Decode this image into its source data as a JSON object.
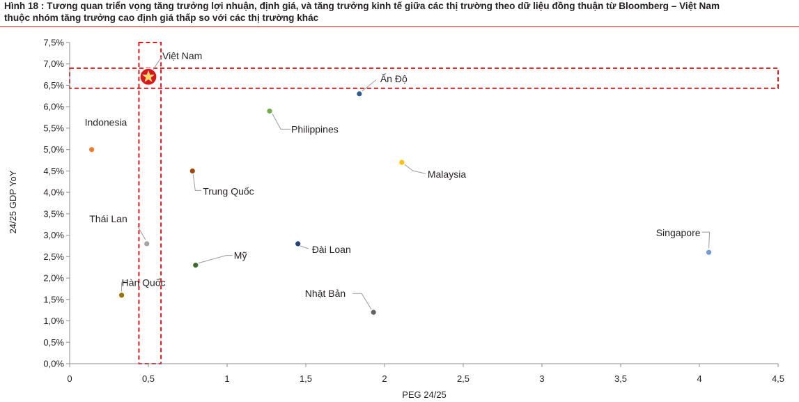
{
  "figure": {
    "title_line1": "Hình 18 : Tương quan triển vọng tăng trưởng lợi nhuận, định giá, và tăng trưởng kinh tế giữa các thị trường theo dữ liệu đồng thuận từ Bloomberg – Việt Nam",
    "title_line2": "thuộc nhóm tăng trưởng cao định giá thấp so với các thị trường khác"
  },
  "chart_data": {
    "type": "scatter",
    "xlabel": "PEG 24/25",
    "ylabel": "24/25 GDP YoY",
    "xlim": [
      0,
      4.5
    ],
    "ylim": [
      0,
      7.5
    ],
    "x_ticks": [
      "0",
      "0,5",
      "1",
      "1,5",
      "2",
      "2,5",
      "3",
      "3,5",
      "4",
      "4,5"
    ],
    "y_ticks": [
      "0,0%",
      "0,5%",
      "1,0%",
      "1,5%",
      "2,0%",
      "2,5%",
      "3,0%",
      "3,5%",
      "4,0%",
      "4,5%",
      "5,0%",
      "5,5%",
      "6,0%",
      "6,5%",
      "7,0%",
      "7,5%"
    ],
    "grid": false,
    "legend": "none",
    "points": [
      {
        "label": "Việt Nam",
        "x": 0.5,
        "y": 6.7,
        "color": "#d7191c",
        "marker": "star"
      },
      {
        "label": "Ấn Độ",
        "x": 1.84,
        "y": 6.3,
        "color": "#2e5d8e"
      },
      {
        "label": "Philippines",
        "x": 1.27,
        "y": 5.9,
        "color": "#70ad47"
      },
      {
        "label": "Indonesia",
        "x": 0.14,
        "y": 5.0,
        "color": "#ed7d31"
      },
      {
        "label": "Malaysia",
        "x": 2.11,
        "y": 4.7,
        "color": "#ffc000"
      },
      {
        "label": "Trung Quốc",
        "x": 0.78,
        "y": 4.5,
        "color": "#9e480e"
      },
      {
        "label": "Thái Lan",
        "x": 0.49,
        "y": 2.8,
        "color": "#a5a5a5"
      },
      {
        "label": "Đài Loan",
        "x": 1.45,
        "y": 2.8,
        "color": "#264478"
      },
      {
        "label": "Singapore",
        "x": 4.06,
        "y": 2.6,
        "color": "#6f9bd1"
      },
      {
        "label": "Mỹ",
        "x": 0.8,
        "y": 2.3,
        "color": "#43682b"
      },
      {
        "label": "Hàn Quốc",
        "x": 0.33,
        "y": 1.6,
        "color": "#997300"
      },
      {
        "label": "Nhật Bản",
        "x": 1.93,
        "y": 1.2,
        "color": "#636363"
      }
    ],
    "highlight_regions": [
      {
        "x_range": [
          0.44,
          0.58
        ],
        "y_range": [
          0,
          7.5
        ],
        "color": "#d7191c"
      },
      {
        "x_range": [
          0,
          4.5
        ],
        "y_range": [
          6.43,
          6.9
        ],
        "color": "#d7191c"
      }
    ]
  }
}
